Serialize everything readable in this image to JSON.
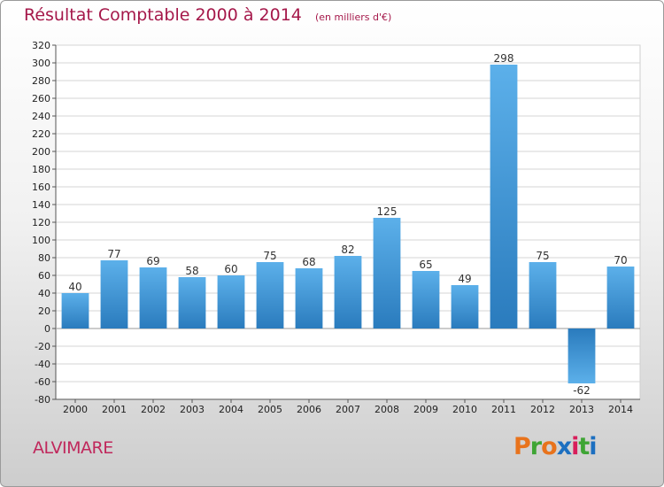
{
  "header": {
    "title": "Résultat Comptable 2000 à 2014",
    "subtitle": "(en milliers d'€)"
  },
  "footer": {
    "commune": "ALVIMARE",
    "logo_letters": [
      "P",
      "r",
      "o",
      "x",
      "i",
      "t",
      "i"
    ],
    "logo_colors": [
      "#e8731c",
      "#3fa535",
      "#e8731c",
      "#1c6fc0",
      "#d81e5b",
      "#3fa535",
      "#1c6fc0"
    ]
  },
  "chart_data": {
    "type": "bar",
    "title": "Résultat Comptable 2000 à 2014",
    "subtitle": "(en milliers d'€)",
    "categories": [
      "2000",
      "2001",
      "2002",
      "2003",
      "2004",
      "2005",
      "2006",
      "2007",
      "2008",
      "2009",
      "2010",
      "2011",
      "2012",
      "2013",
      "2014"
    ],
    "values": [
      40,
      77,
      69,
      58,
      60,
      75,
      68,
      82,
      125,
      65,
      49,
      298,
      75,
      -62,
      70
    ],
    "ylim": [
      -80,
      320
    ],
    "yticks": [
      320,
      300,
      280,
      260,
      240,
      220,
      200,
      180,
      160,
      140,
      120,
      100,
      80,
      60,
      40,
      20,
      0,
      -20,
      -40,
      -60,
      -80
    ],
    "grid": true,
    "bar_color_light": "#5cb0ea",
    "bar_color_dark": "#2a7bbd"
  }
}
